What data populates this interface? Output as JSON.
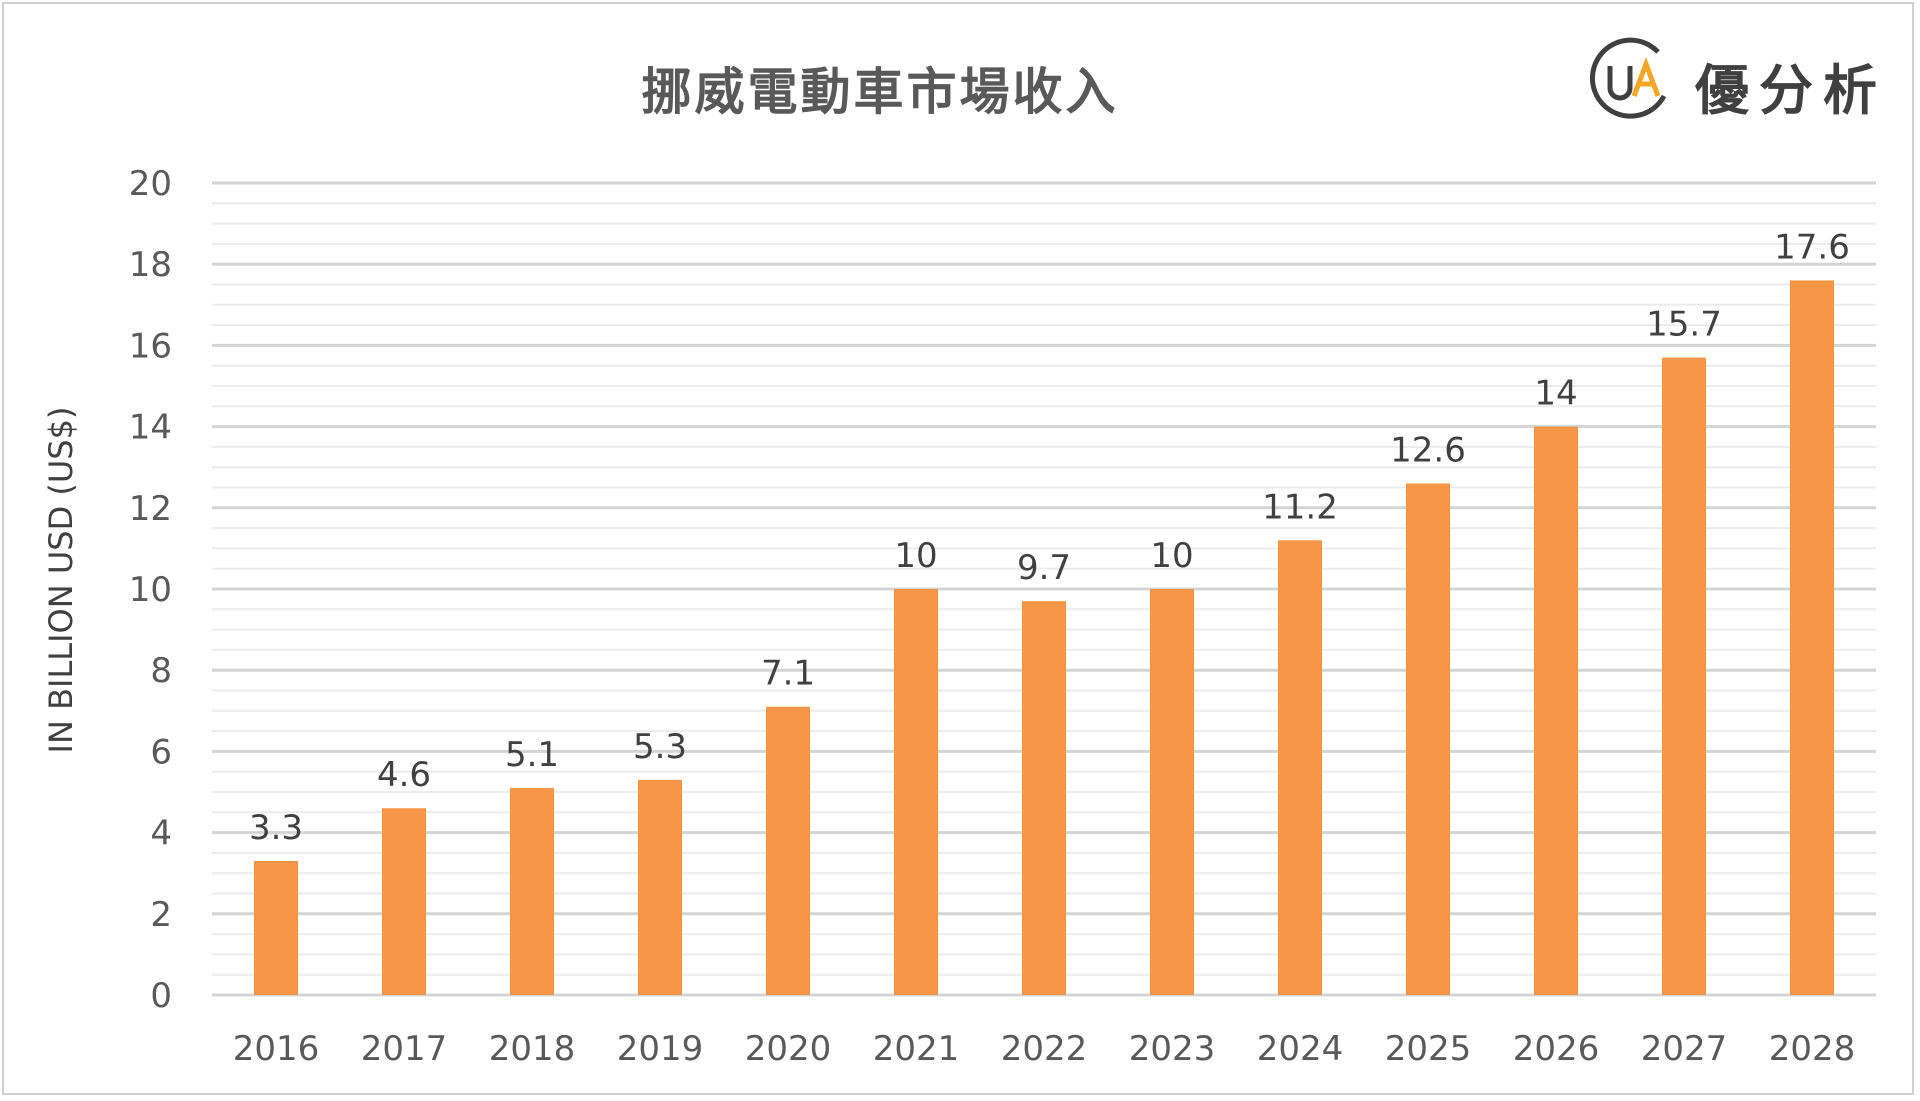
{
  "logo": {
    "mark": "UA",
    "text": "優分析",
    "ring_color": "#404040",
    "accent_color": "#f5a623"
  },
  "chart_data": {
    "type": "bar",
    "title": "挪威電動車市場收入",
    "ylabel": "IN BILLION USD (US$)",
    "xlabel": "",
    "categories": [
      "2016",
      "2017",
      "2018",
      "2019",
      "2020",
      "2021",
      "2022",
      "2023",
      "2024",
      "2025",
      "2026",
      "2027",
      "2028"
    ],
    "values": [
      3.3,
      4.6,
      5.1,
      5.3,
      7.1,
      10,
      9.7,
      10,
      11.2,
      12.6,
      14,
      15.7,
      17.6
    ],
    "ylim": [
      0,
      20
    ],
    "yticks": [
      0,
      2,
      4,
      6,
      8,
      10,
      12,
      14,
      16,
      18,
      20
    ],
    "bar_color": "#f79646",
    "grid": true,
    "data_labels": true
  }
}
